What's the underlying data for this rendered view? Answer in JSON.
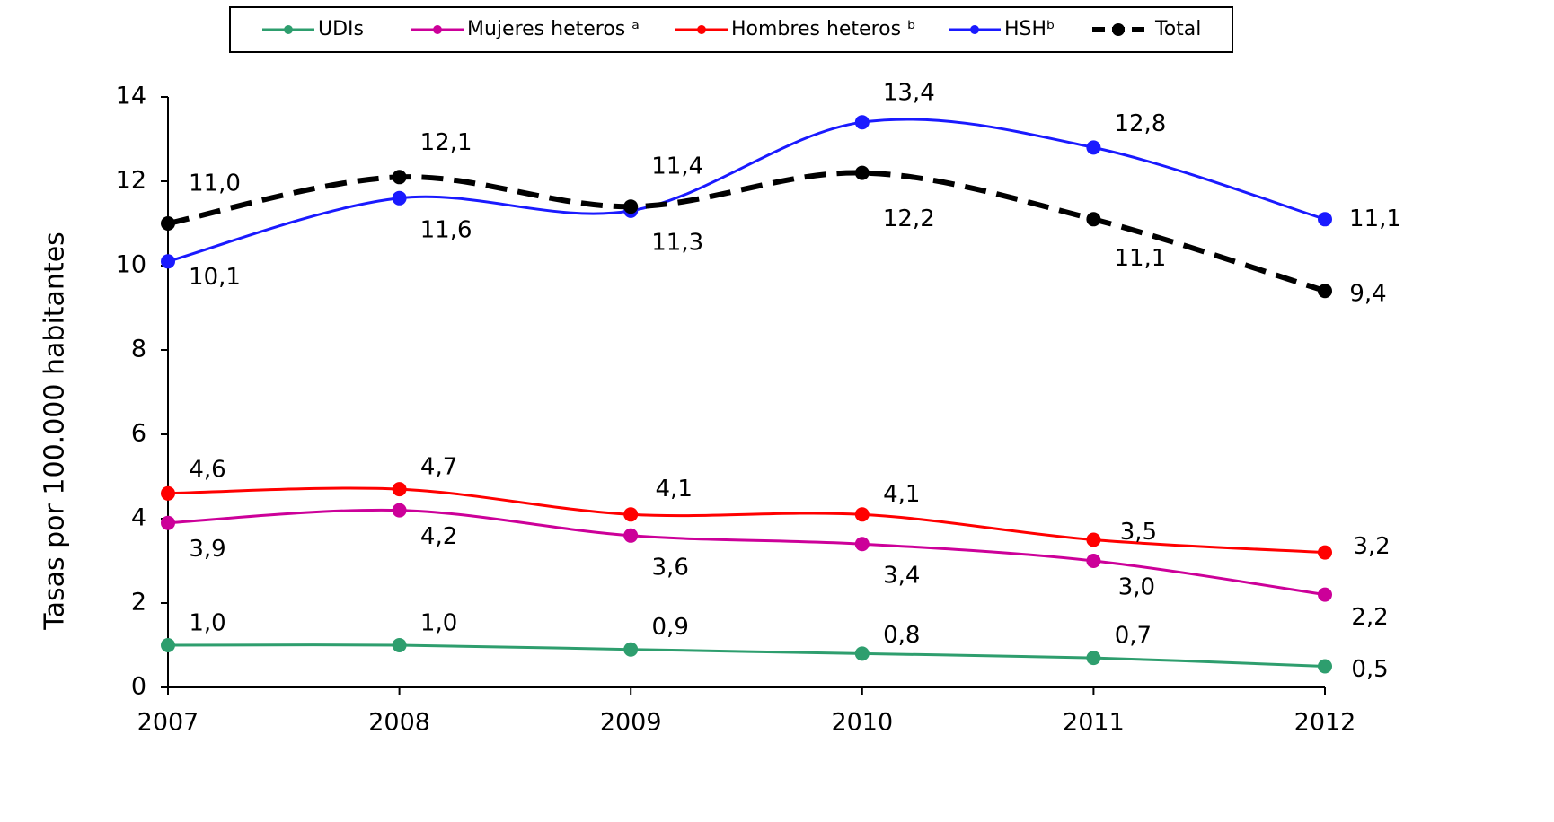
{
  "chart_data": {
    "type": "line",
    "y_label": "Tasas por 100.000 habitantes",
    "categories": [
      "2007",
      "2008",
      "2009",
      "2010",
      "2011",
      "2012"
    ],
    "ylim": [
      0,
      14
    ],
    "yticks": [
      0,
      2,
      4,
      6,
      8,
      10,
      12,
      14
    ],
    "grid": false,
    "legend": "top",
    "smooth": true,
    "series": [
      {
        "name": "UDIs",
        "color": "#2e9e6e",
        "values": [
          1.0,
          1.0,
          0.9,
          0.8,
          0.7,
          0.5
        ],
        "value_labels": [
          "1,0",
          "1,0",
          "0,9",
          "0,8",
          "0,7",
          "0,5"
        ]
      },
      {
        "name": "Mujeres heteros ᵃ",
        "color": "#cc0099",
        "values": [
          3.9,
          4.2,
          3.6,
          3.4,
          3.0,
          2.2
        ],
        "value_labels": [
          "3,9",
          "4,2",
          "3,6",
          "3,4",
          "3,0",
          "2,2"
        ]
      },
      {
        "name": "Hombres heteros ᵇ",
        "color": "#ff0000",
        "values": [
          4.6,
          4.7,
          4.1,
          4.1,
          3.5,
          3.2
        ],
        "value_labels": [
          "4,6",
          "4,7",
          "4,1",
          "4,1",
          "3,5",
          "3,2"
        ]
      },
      {
        "name": "HSHᵇ",
        "color": "#1a1aff",
        "values": [
          10.1,
          11.6,
          11.3,
          13.4,
          12.8,
          11.1
        ],
        "value_labels": [
          "10,1",
          "11,6",
          "11,3",
          "13,4",
          "12,8",
          "11,1"
        ]
      },
      {
        "name": "Total",
        "color": "#000000",
        "line_style": "dashed",
        "values": [
          11.0,
          12.1,
          11.4,
          12.2,
          11.1,
          9.4
        ],
        "value_labels": [
          "11,0",
          "12,1",
          "11,4",
          "12,2",
          "11,1",
          "9,4"
        ]
      }
    ]
  }
}
